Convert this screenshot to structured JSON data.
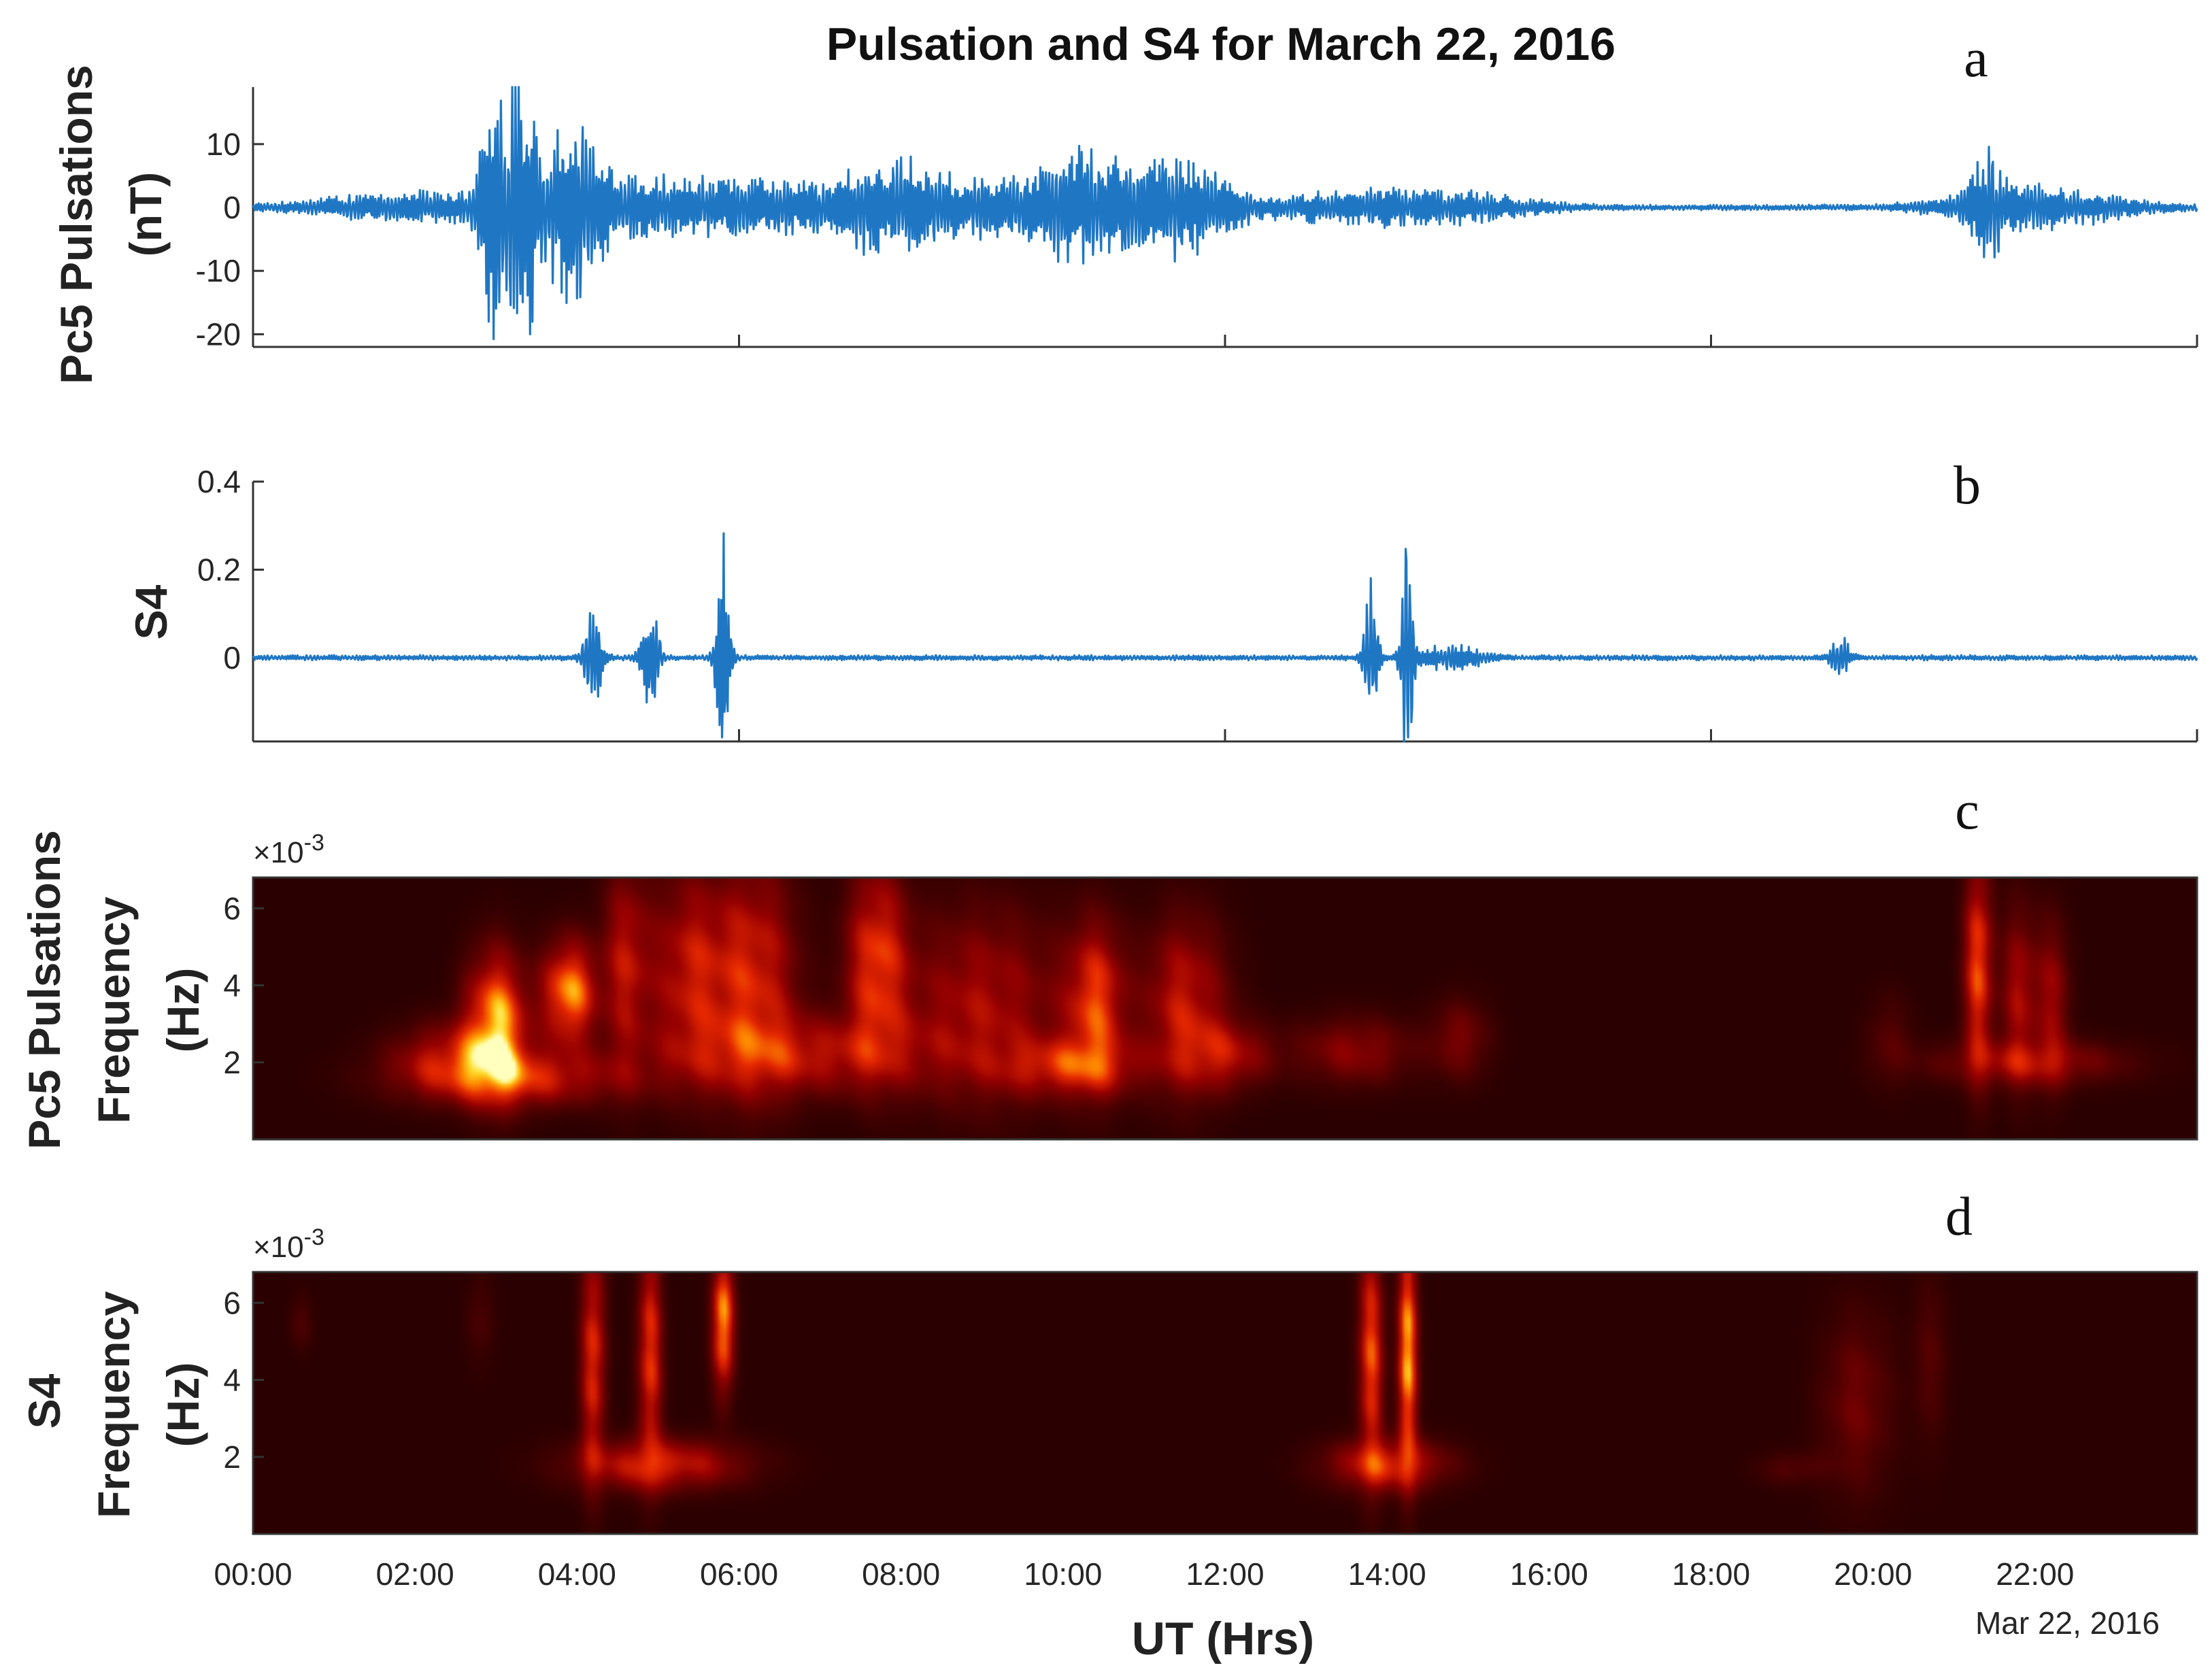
{
  "figure": {
    "title": "Pulsation and S4 for March 22, 2016",
    "xlabel": "UT (Hrs)",
    "date_label": "Mar 22, 2016",
    "x_ticks": [
      "00:00",
      "02:00",
      "04:00",
      "06:00",
      "08:00",
      "10:00",
      "12:00",
      "14:00",
      "16:00",
      "18:00",
      "20:00",
      "22:00"
    ]
  },
  "colors": {
    "line": "#1f77c4",
    "heat_background": "#2a0000",
    "axis": "#333333"
  },
  "chart_data": [
    {
      "panel": "a",
      "type": "line",
      "ylabel": "Pc5 Pulsations (nT)",
      "ylabel_lines": [
        "Pc5 Pulsations",
        "(nT)"
      ],
      "yticks": [
        "10",
        "0",
        "-10",
        "-20"
      ],
      "ytick_values": [
        10,
        0,
        -10,
        -20
      ],
      "ylim": [
        -22,
        19
      ],
      "xlim": [
        0,
        24
      ],
      "series": [
        {
          "bursts": [
            {
              "t": 2.0,
              "width": 0.9,
              "amp": 2.5
            },
            {
              "t": 3.0,
              "width": 0.15,
              "amp": 20
            },
            {
              "t": 3.35,
              "width": 0.12,
              "amp": 19
            },
            {
              "t": 3.9,
              "width": 0.25,
              "amp": 14
            },
            {
              "t": 4.4,
              "width": 0.6,
              "amp": 4
            },
            {
              "t": 6.0,
              "width": 1.0,
              "amp": 4.5
            },
            {
              "t": 7.8,
              "width": 0.5,
              "amp": 6
            },
            {
              "t": 9.0,
              "width": 0.9,
              "amp": 4
            },
            {
              "t": 10.3,
              "width": 0.5,
              "amp": 8
            },
            {
              "t": 11.5,
              "width": 0.5,
              "amp": 8
            },
            {
              "t": 13.8,
              "width": 0.8,
              "amp": 3
            },
            {
              "t": 15.2,
              "width": 0.6,
              "amp": 1.5
            },
            {
              "t": 21.4,
              "width": 0.15,
              "amp": 7
            },
            {
              "t": 22.0,
              "width": 0.8,
              "amp": 3.5
            }
          ]
        }
      ]
    },
    {
      "panel": "b",
      "type": "line",
      "ylabel": "S4",
      "yticks": [
        "0.4",
        "0.2",
        "0"
      ],
      "ytick_values": [
        0.4,
        0.2,
        0
      ],
      "ylim": [
        -0.19,
        0.4
      ],
      "xlim": [
        0,
        24
      ],
      "series": [
        {
          "bursts": [
            {
              "t": 4.2,
              "width": 0.08,
              "amp": 0.13
            },
            {
              "t": 4.9,
              "width": 0.08,
              "amp": 0.14
            },
            {
              "t": 5.8,
              "width": 0.06,
              "amp": 0.33
            },
            {
              "t": 13.8,
              "width": 0.06,
              "amp": 0.2
            },
            {
              "t": 14.25,
              "width": 0.05,
              "amp": 0.38
            },
            {
              "t": 14.8,
              "width": 0.3,
              "amp": 0.03
            },
            {
              "t": 19.6,
              "width": 0.08,
              "amp": 0.05
            }
          ]
        }
      ]
    },
    {
      "panel": "c",
      "type": "heatmap",
      "ylabel": "Pc5 Pulsations Frequency (Hz)",
      "ylabel_lines": [
        "Pc5 Pulsations",
        "Frequency",
        "(Hz)"
      ],
      "y_multiplier": "×10-3",
      "yticks": [
        "6",
        "4",
        "2"
      ],
      "ytick_values": [
        6,
        4,
        2
      ],
      "ylim": [
        0,
        6.8
      ],
      "xlim": [
        0,
        24
      ],
      "blobs": [
        {
          "t": 3.0,
          "f": 3.0,
          "st": 0.25,
          "sf": 1.2,
          "i": 1.0
        },
        {
          "t": 3.9,
          "f": 3.8,
          "st": 0.22,
          "sf": 0.9,
          "i": 0.95
        },
        {
          "t": 3.2,
          "f": 1.6,
          "st": 0.9,
          "sf": 0.5,
          "i": 0.6
        },
        {
          "t": 2.5,
          "f": 2.2,
          "st": 0.5,
          "sf": 0.6,
          "i": 0.45
        },
        {
          "t": 4.6,
          "f": 4.5,
          "st": 0.2,
          "sf": 1.8,
          "i": 0.5
        },
        {
          "t": 5.4,
          "f": 4.3,
          "st": 0.35,
          "sf": 1.8,
          "i": 0.55
        },
        {
          "t": 6.2,
          "f": 4.2,
          "st": 0.35,
          "sf": 2.0,
          "i": 0.6
        },
        {
          "t": 7.7,
          "f": 4.6,
          "st": 0.25,
          "sf": 1.7,
          "i": 0.7
        },
        {
          "t": 6.8,
          "f": 2.2,
          "st": 1.1,
          "sf": 0.7,
          "i": 0.5
        },
        {
          "t": 9.0,
          "f": 3.5,
          "st": 0.7,
          "sf": 1.7,
          "i": 0.45
        },
        {
          "t": 10.4,
          "f": 3.5,
          "st": 0.25,
          "sf": 1.4,
          "i": 0.7
        },
        {
          "t": 10.1,
          "f": 1.9,
          "st": 0.6,
          "sf": 0.5,
          "i": 0.55
        },
        {
          "t": 11.5,
          "f": 3.5,
          "st": 0.35,
          "sf": 1.5,
          "i": 0.55
        },
        {
          "t": 12.0,
          "f": 2.2,
          "st": 0.4,
          "sf": 0.6,
          "i": 0.45
        },
        {
          "t": 13.6,
          "f": 2.3,
          "st": 0.5,
          "sf": 0.6,
          "i": 0.35
        },
        {
          "t": 14.9,
          "f": 2.6,
          "st": 0.25,
          "sf": 0.7,
          "i": 0.28
        },
        {
          "t": 21.3,
          "f": 4.5,
          "st": 0.12,
          "sf": 1.8,
          "i": 0.75
        },
        {
          "t": 21.8,
          "f": 3.8,
          "st": 0.15,
          "sf": 1.5,
          "i": 0.45
        },
        {
          "t": 22.2,
          "f": 3.6,
          "st": 0.15,
          "sf": 1.4,
          "i": 0.4
        },
        {
          "t": 21.9,
          "f": 2.0,
          "st": 0.8,
          "sf": 0.4,
          "i": 0.4
        },
        {
          "t": 20.2,
          "f": 2.6,
          "st": 0.2,
          "sf": 0.8,
          "i": 0.15
        }
      ]
    },
    {
      "panel": "d",
      "type": "heatmap",
      "ylabel": "S4 Frequency (Hz)",
      "ylabel_lines": [
        "S4",
        "Frequency",
        "(Hz)"
      ],
      "y_multiplier": "×10-3",
      "yticks": [
        "6",
        "4",
        "2"
      ],
      "ytick_values": [
        6,
        4,
        2
      ],
      "ylim": [
        0,
        6.8
      ],
      "xlim": [
        0,
        24
      ],
      "blobs": [
        {
          "t": 4.2,
          "f": 4.6,
          "st": 0.1,
          "sf": 2.0,
          "i": 0.7
        },
        {
          "t": 4.9,
          "f": 4.6,
          "st": 0.1,
          "sf": 2.0,
          "i": 0.7
        },
        {
          "t": 5.8,
          "f": 5.5,
          "st": 0.09,
          "sf": 1.2,
          "i": 1.0
        },
        {
          "t": 5.0,
          "f": 1.8,
          "st": 0.7,
          "sf": 0.45,
          "i": 0.6
        },
        {
          "t": 13.8,
          "f": 4.6,
          "st": 0.1,
          "sf": 2.0,
          "i": 0.75
        },
        {
          "t": 14.25,
          "f": 4.6,
          "st": 0.08,
          "sf": 2.0,
          "i": 1.0
        },
        {
          "t": 14.0,
          "f": 1.8,
          "st": 0.5,
          "sf": 0.45,
          "i": 0.6
        },
        {
          "t": 19.8,
          "f": 3.4,
          "st": 0.3,
          "sf": 1.6,
          "i": 0.25
        },
        {
          "t": 20.7,
          "f": 4.5,
          "st": 0.15,
          "sf": 1.5,
          "i": 0.15
        },
        {
          "t": 19.0,
          "f": 1.7,
          "st": 0.3,
          "sf": 0.3,
          "i": 0.15
        },
        {
          "t": 0.6,
          "f": 5.5,
          "st": 0.1,
          "sf": 0.5,
          "i": 0.12
        },
        {
          "t": 2.8,
          "f": 5.6,
          "st": 0.12,
          "sf": 0.8,
          "i": 0.12
        }
      ]
    }
  ],
  "panel_letters": [
    "a",
    "b",
    "c",
    "d"
  ]
}
